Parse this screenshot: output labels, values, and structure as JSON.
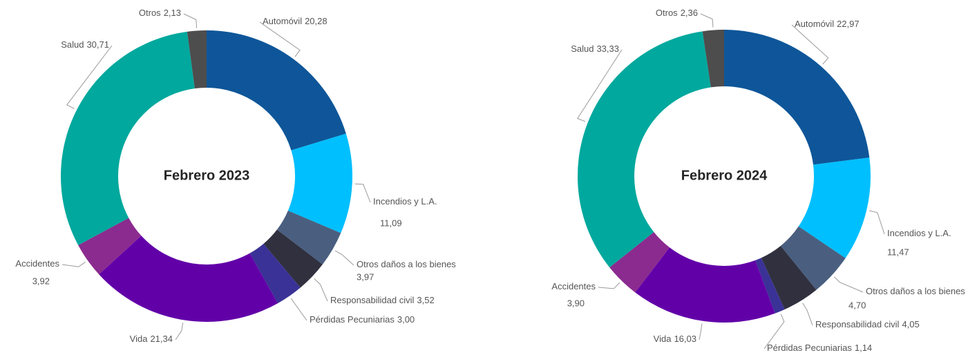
{
  "chart_data": [
    {
      "type": "donut",
      "title": "Febrero 2023",
      "categories": [
        "Automóvil",
        "Incendios y L.A.",
        "Otros daños a los bienes",
        "Responsabilidad civil",
        "Pérdidas Pecuniarias",
        "Vida",
        "Accidentes",
        "Salud",
        "Otros"
      ],
      "values": [
        20.28,
        11.09,
        3.97,
        3.52,
        3.0,
        21.34,
        3.92,
        30.71,
        2.13
      ],
      "value_labels": [
        "20,28",
        "11,09",
        "3,97",
        "3,52",
        "3,00",
        "21,34",
        "3,92",
        "30,71",
        "2,13"
      ],
      "colors": [
        "#0e5699",
        "#00bfff",
        "#4a5f80",
        "#30303f",
        "#3a3296",
        "#6200a8",
        "#8b2b8f",
        "#00a89d",
        "#4d4d4d"
      ]
    },
    {
      "type": "donut",
      "title": "Febrero 2024",
      "categories": [
        "Automóvil",
        "Incendios y L.A.",
        "Otros daños a los bienes",
        "Responsabilidad civil",
        "Pérdidas Pecuniarias",
        "Vida",
        "Accidentes",
        "Salud",
        "Otros"
      ],
      "values": [
        22.97,
        11.47,
        4.7,
        4.05,
        1.14,
        16.03,
        3.9,
        33.33,
        2.36
      ],
      "value_labels": [
        "22,97",
        "11,47",
        "4,70",
        "4,05",
        "1,14",
        "16,03",
        "3,90",
        "33,33",
        "2,36"
      ],
      "colors": [
        "#0e5699",
        "#00bfff",
        "#4a5f80",
        "#30303f",
        "#3a3296",
        "#6200a8",
        "#8b2b8f",
        "#00a89d",
        "#4d4d4d"
      ]
    }
  ]
}
